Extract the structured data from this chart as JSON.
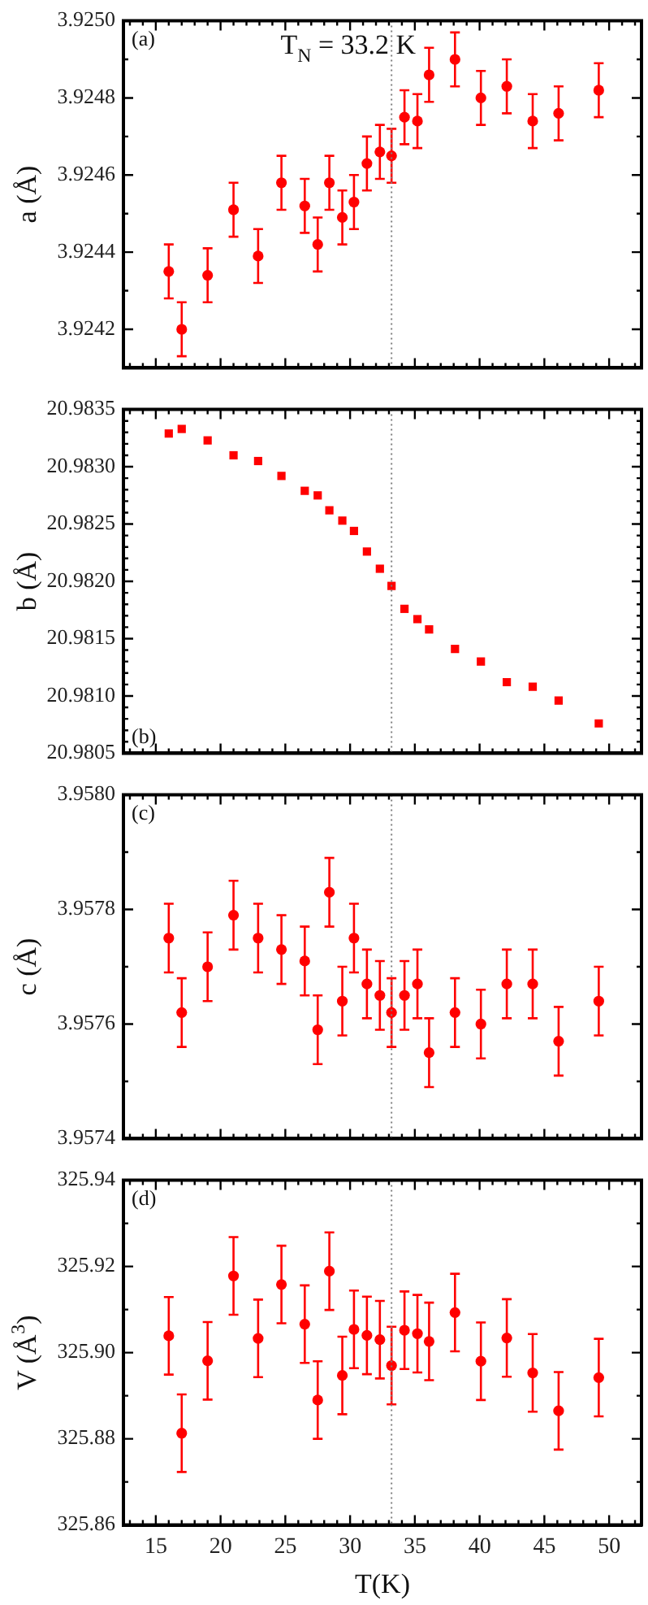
{
  "chart_data": [
    {
      "type": "scatter",
      "ylabel": "a (Å)",
      "marker": "circle",
      "grid": false,
      "legend": false,
      "tick_labels": "y",
      "annotations": [
        "(a)"
      ],
      "ref_lines": [
        {
          "axis": "x",
          "value": 33.2,
          "label": "T$_{N}$ = 33.2 K",
          "color": "#808080",
          "line_style": "dotted"
        }
      ],
      "xlim": [
        12.5,
        52.5
      ],
      "xticks": [
        {
          "value": 13,
          "label": null
        },
        {
          "value": 14,
          "label": null
        },
        15,
        {
          "value": 16,
          "label": null
        },
        {
          "value": 17,
          "label": null
        },
        {
          "value": 18,
          "label": null
        },
        {
          "value": 19,
          "label": null
        },
        20,
        {
          "value": 21,
          "label": null
        },
        {
          "value": 22,
          "label": null
        },
        {
          "value": 23,
          "label": null
        },
        {
          "value": 24,
          "label": null
        },
        25,
        {
          "value": 26,
          "label": null
        },
        {
          "value": 27,
          "label": null
        },
        {
          "value": 28,
          "label": null
        },
        {
          "value": 29,
          "label": null
        },
        30,
        {
          "value": 31,
          "label": null
        },
        {
          "value": 32,
          "label": null
        },
        {
          "value": 33,
          "label": null
        },
        {
          "value": 34,
          "label": null
        },
        35,
        {
          "value": 36,
          "label": null
        },
        {
          "value": 37,
          "label": null
        },
        {
          "value": 38,
          "label": null
        },
        {
          "value": 39,
          "label": null
        },
        40,
        {
          "value": 41,
          "label": null
        },
        {
          "value": 42,
          "label": null
        },
        {
          "value": 43,
          "label": null
        },
        {
          "value": 44,
          "label": null
        },
        45,
        {
          "value": 46,
          "label": null
        },
        {
          "value": 47,
          "label": null
        },
        {
          "value": 48,
          "label": null
        },
        {
          "value": 49,
          "label": null
        },
        50,
        {
          "value": 51,
          "label": null
        },
        {
          "value": 52,
          "label": null
        }
      ],
      "ylim": [
        3.9241,
        3.925
      ],
      "yticks": [
        3.9242,
        {
          "value": 3.9243,
          "label": null
        },
        3.9244,
        {
          "value": 3.9245,
          "label": null
        },
        3.9246,
        {
          "value": 3.9247,
          "label": null
        },
        3.9248,
        {
          "value": 3.9249,
          "label": null
        },
        {
          "value": 3.925,
          "label": "3.9250"
        }
      ],
      "x": [
        16,
        17,
        19,
        21,
        22.9,
        24.7,
        26.5,
        27.5,
        28.4,
        29.4,
        30.3,
        31.3,
        32.3,
        33.2,
        34.2,
        35.2,
        36.1,
        38.1,
        40.1,
        42.1,
        44.1,
        46.1,
        49.2
      ],
      "series": [
        {
          "color": "#ff0000",
          "values": [
            3.92435,
            3.9242,
            3.92434,
            3.92451,
            3.92439,
            3.92458,
            3.92452,
            3.92442,
            3.92458,
            3.92449,
            3.92453,
            3.92463,
            3.92466,
            3.92465,
            3.92475,
            3.92474,
            3.92486,
            3.9249,
            3.9248,
            3.92483,
            3.92474,
            3.92476,
            3.92482
          ],
          "errors": [
            7e-05,
            7e-05,
            7e-05,
            7e-05,
            7e-05,
            7e-05,
            7e-05,
            7e-05,
            7e-05,
            7e-05,
            7e-05,
            7e-05,
            7e-05,
            7e-05,
            7e-05,
            7e-05,
            7e-05,
            7e-05,
            7e-05,
            7e-05,
            7e-05,
            7e-05,
            7e-05
          ]
        }
      ]
    },
    {
      "type": "scatter",
      "ylabel": "b (Å)",
      "marker": "square",
      "grid": false,
      "legend": false,
      "tick_labels": "y",
      "annotations": [
        "(b)"
      ],
      "ref_lines": [
        {
          "axis": "x",
          "value": 33.2,
          "color": "#808080",
          "line_style": "dotted"
        }
      ],
      "xlim": [
        12.5,
        52.5
      ],
      "xticks": [
        {
          "value": 13,
          "label": null
        },
        {
          "value": 14,
          "label": null
        },
        15,
        {
          "value": 16,
          "label": null
        },
        {
          "value": 17,
          "label": null
        },
        {
          "value": 18,
          "label": null
        },
        {
          "value": 19,
          "label": null
        },
        20,
        {
          "value": 21,
          "label": null
        },
        {
          "value": 22,
          "label": null
        },
        {
          "value": 23,
          "label": null
        },
        {
          "value": 24,
          "label": null
        },
        25,
        {
          "value": 26,
          "label": null
        },
        {
          "value": 27,
          "label": null
        },
        {
          "value": 28,
          "label": null
        },
        {
          "value": 29,
          "label": null
        },
        30,
        {
          "value": 31,
          "label": null
        },
        {
          "value": 32,
          "label": null
        },
        {
          "value": 33,
          "label": null
        },
        {
          "value": 34,
          "label": null
        },
        35,
        {
          "value": 36,
          "label": null
        },
        {
          "value": 37,
          "label": null
        },
        {
          "value": 38,
          "label": null
        },
        {
          "value": 39,
          "label": null
        },
        40,
        {
          "value": 41,
          "label": null
        },
        {
          "value": 42,
          "label": null
        },
        {
          "value": 43,
          "label": null
        },
        {
          "value": 44,
          "label": null
        },
        45,
        {
          "value": 46,
          "label": null
        },
        {
          "value": 47,
          "label": null
        },
        {
          "value": 48,
          "label": null
        },
        {
          "value": 49,
          "label": null
        },
        50,
        {
          "value": 51,
          "label": null
        },
        {
          "value": 52,
          "label": null
        }
      ],
      "ylim": [
        20.9805,
        20.9835
      ],
      "yticks": [
        20.9805,
        {
          "value": 20.9806,
          "label": null
        },
        {
          "value": 20.9807,
          "label": null
        },
        {
          "value": 20.9808,
          "label": null
        },
        {
          "value": 20.9809,
          "label": null
        },
        {
          "value": 20.981,
          "label": "20.9810"
        },
        {
          "value": 20.9811,
          "label": null
        },
        {
          "value": 20.9812,
          "label": null
        },
        {
          "value": 20.9813,
          "label": null
        },
        {
          "value": 20.9814,
          "label": null
        },
        20.9815,
        {
          "value": 20.9816,
          "label": null
        },
        {
          "value": 20.9817,
          "label": null
        },
        {
          "value": 20.9818,
          "label": null
        },
        {
          "value": 20.9819,
          "label": null
        },
        {
          "value": 20.982,
          "label": "20.9820"
        },
        {
          "value": 20.9821,
          "label": null
        },
        {
          "value": 20.9822,
          "label": null
        },
        {
          "value": 20.9823,
          "label": null
        },
        {
          "value": 20.9824,
          "label": null
        },
        20.9825,
        {
          "value": 20.9826,
          "label": null
        },
        {
          "value": 20.9827,
          "label": null
        },
        {
          "value": 20.9828,
          "label": null
        },
        {
          "value": 20.9829,
          "label": null
        },
        {
          "value": 20.983,
          "label": "20.9830"
        },
        {
          "value": 20.9831,
          "label": null
        },
        {
          "value": 20.9832,
          "label": null
        },
        {
          "value": 20.9833,
          "label": null
        },
        {
          "value": 20.9834,
          "label": null
        },
        20.9835
      ],
      "x": [
        16,
        17,
        19,
        21,
        22.9,
        24.7,
        26.5,
        27.5,
        28.4,
        29.4,
        30.3,
        31.3,
        32.3,
        33.2,
        34.2,
        35.2,
        36.1,
        38.1,
        40.1,
        42.1,
        44.1,
        46.1,
        49.2
      ],
      "series": [
        {
          "color": "#ff0000",
          "values": [
            20.98329,
            20.98333,
            20.98323,
            20.9831,
            20.98305,
            20.98292,
            20.98279,
            20.98275,
            20.98262,
            20.98253,
            20.98244,
            20.98226,
            20.98211,
            20.98196,
            20.98176,
            20.98167,
            20.98158,
            20.98141,
            20.9813,
            20.98112,
            20.98108,
            20.98096,
            20.98076
          ]
        }
      ]
    },
    {
      "type": "scatter",
      "ylabel": "c (Å)",
      "marker": "circle",
      "grid": false,
      "legend": false,
      "tick_labels": "y",
      "annotations": [
        "(c)"
      ],
      "ref_lines": [
        {
          "axis": "x",
          "value": 33.2,
          "color": "#808080",
          "line_style": "dotted"
        }
      ],
      "xlim": [
        12.5,
        52.5
      ],
      "xticks": [
        {
          "value": 13,
          "label": null
        },
        {
          "value": 14,
          "label": null
        },
        15,
        {
          "value": 16,
          "label": null
        },
        {
          "value": 17,
          "label": null
        },
        {
          "value": 18,
          "label": null
        },
        {
          "value": 19,
          "label": null
        },
        20,
        {
          "value": 21,
          "label": null
        },
        {
          "value": 22,
          "label": null
        },
        {
          "value": 23,
          "label": null
        },
        {
          "value": 24,
          "label": null
        },
        25,
        {
          "value": 26,
          "label": null
        },
        {
          "value": 27,
          "label": null
        },
        {
          "value": 28,
          "label": null
        },
        {
          "value": 29,
          "label": null
        },
        30,
        {
          "value": 31,
          "label": null
        },
        {
          "value": 32,
          "label": null
        },
        {
          "value": 33,
          "label": null
        },
        {
          "value": 34,
          "label": null
        },
        35,
        {
          "value": 36,
          "label": null
        },
        {
          "value": 37,
          "label": null
        },
        {
          "value": 38,
          "label": null
        },
        {
          "value": 39,
          "label": null
        },
        40,
        {
          "value": 41,
          "label": null
        },
        {
          "value": 42,
          "label": null
        },
        {
          "value": 43,
          "label": null
        },
        {
          "value": 44,
          "label": null
        },
        45,
        {
          "value": 46,
          "label": null
        },
        {
          "value": 47,
          "label": null
        },
        {
          "value": 48,
          "label": null
        },
        {
          "value": 49,
          "label": null
        },
        50,
        {
          "value": 51,
          "label": null
        },
        {
          "value": 52,
          "label": null
        }
      ],
      "ylim": [
        3.9574,
        3.958
      ],
      "yticks": [
        3.9574,
        {
          "value": 3.9575,
          "label": null
        },
        3.9576,
        {
          "value": 3.9577,
          "label": null
        },
        3.9578,
        {
          "value": 3.9579,
          "label": null
        },
        {
          "value": 3.958,
          "label": "3.9580"
        }
      ],
      "x": [
        16,
        17,
        19,
        21,
        22.9,
        24.7,
        26.5,
        27.5,
        28.4,
        29.4,
        30.3,
        31.3,
        32.3,
        33.2,
        34.2,
        35.2,
        36.1,
        38.1,
        40.1,
        42.1,
        44.1,
        46.1,
        49.2
      ],
      "series": [
        {
          "color": "#ff0000",
          "values": [
            3.95775,
            3.95762,
            3.9577,
            3.95779,
            3.95775,
            3.95773,
            3.95771,
            3.95759,
            3.95783,
            3.95764,
            3.95775,
            3.95767,
            3.95765,
            3.95762,
            3.95765,
            3.95767,
            3.95755,
            3.95762,
            3.9576,
            3.95767,
            3.95767,
            3.95757,
            3.95764
          ],
          "errors": [
            6e-05,
            6e-05,
            6e-05,
            6e-05,
            6e-05,
            6e-05,
            6e-05,
            6e-05,
            6e-05,
            6e-05,
            6e-05,
            6e-05,
            6e-05,
            6e-05,
            6e-05,
            6e-05,
            6e-05,
            6e-05,
            6e-05,
            6e-05,
            6e-05,
            6e-05,
            6e-05
          ]
        }
      ]
    },
    {
      "type": "scatter",
      "xlabel": "T(K)",
      "ylabel": "V (Å$^{3}$)",
      "marker": "circle",
      "grid": false,
      "legend": false,
      "annotations": [
        "(d)"
      ],
      "ref_lines": [
        {
          "axis": "x",
          "value": 33.2,
          "color": "#808080",
          "line_style": "dotted"
        }
      ],
      "xlim": [
        12.5,
        52.5
      ],
      "xticks": [
        {
          "value": 13,
          "label": null
        },
        {
          "value": 14,
          "label": null
        },
        15,
        {
          "value": 16,
          "label": null
        },
        {
          "value": 17,
          "label": null
        },
        {
          "value": 18,
          "label": null
        },
        {
          "value": 19,
          "label": null
        },
        20,
        {
          "value": 21,
          "label": null
        },
        {
          "value": 22,
          "label": null
        },
        {
          "value": 23,
          "label": null
        },
        {
          "value": 24,
          "label": null
        },
        25,
        {
          "value": 26,
          "label": null
        },
        {
          "value": 27,
          "label": null
        },
        {
          "value": 28,
          "label": null
        },
        {
          "value": 29,
          "label": null
        },
        30,
        {
          "value": 31,
          "label": null
        },
        {
          "value": 32,
          "label": null
        },
        {
          "value": 33,
          "label": null
        },
        {
          "value": 34,
          "label": null
        },
        35,
        {
          "value": 36,
          "label": null
        },
        {
          "value": 37,
          "label": null
        },
        {
          "value": 38,
          "label": null
        },
        {
          "value": 39,
          "label": null
        },
        40,
        {
          "value": 41,
          "label": null
        },
        {
          "value": 42,
          "label": null
        },
        {
          "value": 43,
          "label": null
        },
        {
          "value": 44,
          "label": null
        },
        45,
        {
          "value": 46,
          "label": null
        },
        {
          "value": 47,
          "label": null
        },
        {
          "value": 48,
          "label": null
        },
        {
          "value": 49,
          "label": null
        },
        50,
        {
          "value": 51,
          "label": null
        },
        {
          "value": 52,
          "label": null
        }
      ],
      "ylim": [
        325.86,
        325.94
      ],
      "yticks": [
        325.86,
        {
          "value": 325.87,
          "label": null
        },
        325.88,
        {
          "value": 325.89,
          "label": null
        },
        {
          "value": 325.9,
          "label": "325.90"
        },
        {
          "value": 325.91,
          "label": null
        },
        325.92,
        {
          "value": 325.93,
          "label": null
        },
        325.94
      ],
      "x": [
        16,
        17,
        19,
        21,
        22.9,
        24.7,
        26.5,
        27.5,
        28.4,
        29.4,
        30.3,
        31.3,
        32.3,
        33.2,
        34.2,
        35.2,
        36.1,
        38.1,
        40.1,
        42.1,
        44.1,
        46.1,
        49.2
      ],
      "series": [
        {
          "color": "#ff0000",
          "values": [
            325.9039,
            325.8813,
            325.8981,
            325.9178,
            325.9033,
            325.9158,
            325.9066,
            325.889,
            325.9189,
            325.8947,
            325.9054,
            325.904,
            325.903,
            325.897,
            325.9052,
            325.9044,
            325.9026,
            325.9093,
            325.898,
            325.9034,
            325.8953,
            325.8865,
            325.8942
          ],
          "errors": [
            0.009,
            0.009,
            0.009,
            0.009,
            0.009,
            0.009,
            0.009,
            0.009,
            0.009,
            0.009,
            0.009,
            0.009,
            0.009,
            0.009,
            0.009,
            0.009,
            0.009,
            0.009,
            0.009,
            0.009,
            0.009,
            0.009,
            0.009
          ]
        }
      ]
    }
  ]
}
